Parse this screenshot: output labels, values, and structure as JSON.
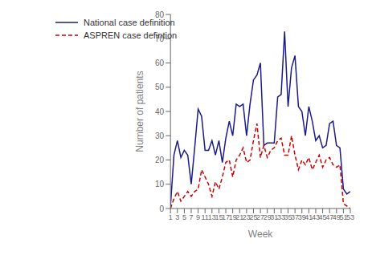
{
  "chart_data": {
    "type": "line",
    "x": [
      1,
      2,
      3,
      4,
      5,
      6,
      7,
      8,
      9,
      10,
      11,
      12,
      13,
      14,
      15,
      16,
      17,
      18,
      19,
      20,
      21,
      22,
      23,
      24,
      25,
      26,
      27,
      28,
      29,
      30,
      31,
      32,
      33,
      34,
      35,
      36,
      37,
      38,
      39,
      40,
      41,
      42,
      43,
      44,
      45,
      46,
      47,
      48,
      49,
      50,
      51,
      52,
      53
    ],
    "series": [
      {
        "name": "National case definition",
        "color": "#1a1a8c",
        "line_style": "solid",
        "values": [
          1,
          22,
          28,
          21,
          24,
          22,
          10,
          25,
          41,
          38,
          24,
          24,
          28,
          22,
          28,
          19,
          29,
          36,
          30,
          43,
          42,
          43,
          30,
          43,
          53,
          55,
          60,
          26,
          27,
          27,
          27,
          46,
          47,
          73,
          42,
          58,
          63,
          42,
          40,
          30,
          42,
          36,
          28,
          30,
          25,
          26,
          35,
          36,
          26,
          25,
          8,
          6,
          7
        ]
      },
      {
        "name": "ASPREN case defintion",
        "color": "#cc0000",
        "line_style": "dashed",
        "values": [
          0,
          4,
          7,
          3,
          5,
          7,
          5,
          7,
          8,
          16,
          13,
          10,
          5,
          11,
          8,
          13,
          19,
          20,
          13,
          20,
          22,
          25,
          19,
          20,
          28,
          35,
          21,
          26,
          21,
          24,
          25,
          28,
          29,
          22,
          22,
          30,
          22,
          16,
          20,
          18,
          21,
          16,
          19,
          22,
          17,
          20,
          21,
          18,
          17,
          18,
          2,
          1,
          0
        ]
      }
    ],
    "xlabel": "Week",
    "ylabel": "Number of patients",
    "xlim": [
      1,
      53
    ],
    "xticks": [
      1,
      3,
      5,
      7,
      9,
      11,
      13,
      15,
      17,
      19,
      21,
      23,
      25,
      27,
      29,
      31,
      33,
      35,
      37,
      39,
      41,
      43,
      45,
      47,
      49,
      51,
      53
    ],
    "ylim": [
      0,
      80
    ],
    "yticks": [
      0,
      10,
      20,
      30,
      40,
      50,
      60,
      70,
      80
    ],
    "legend": "upper left",
    "grid": false
  }
}
